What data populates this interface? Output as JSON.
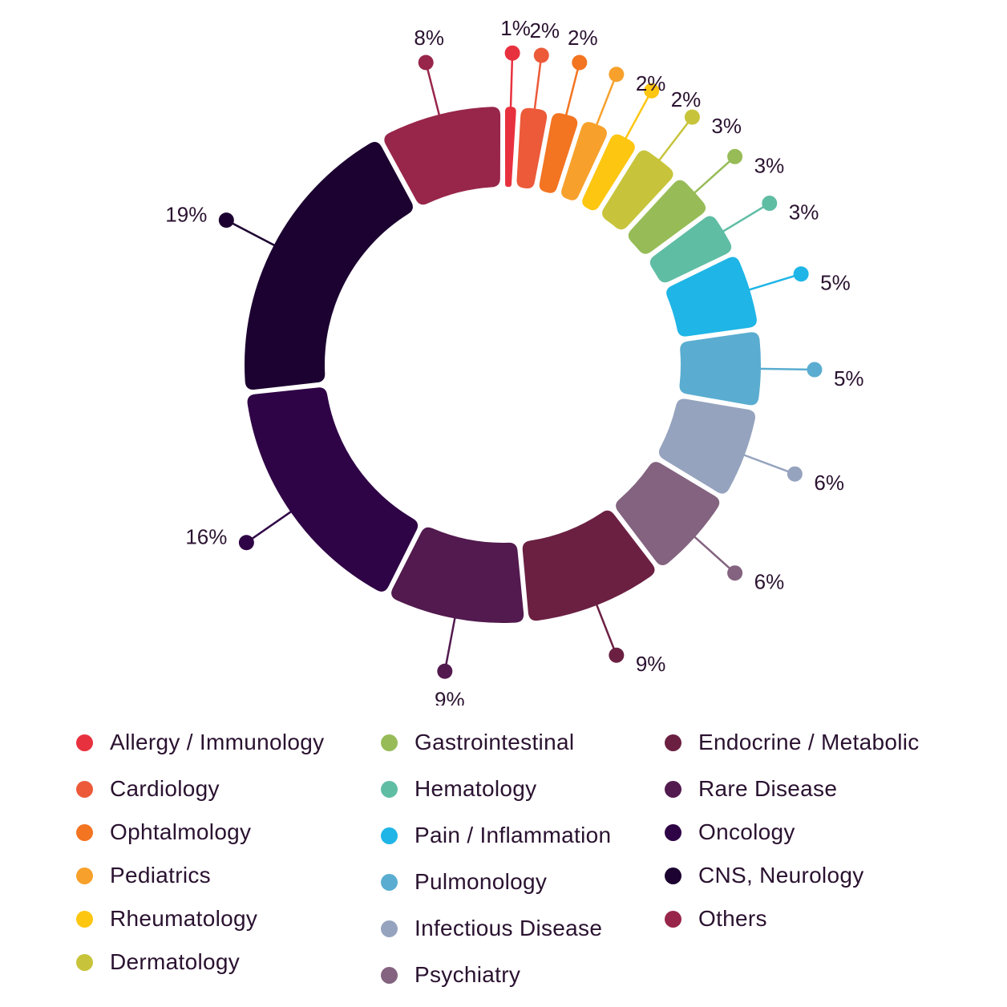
{
  "chart_data": {
    "type": "pie",
    "variant": "donut",
    "title": "",
    "legend_position": "bottom",
    "slices": [
      {
        "label": "Allergy / Immunology",
        "value": 1,
        "value_label": "1%",
        "color": "#e8313f"
      },
      {
        "label": "Cardiology",
        "value": 2,
        "value_label": "2%",
        "color": "#ec5a3a"
      },
      {
        "label": "Ophtalmology",
        "value": 2,
        "value_label": "2%",
        "color": "#f37421"
      },
      {
        "label": "Pediatrics",
        "value": 2,
        "value_label": "2%",
        "color": "#f7a12c"
      },
      {
        "label": "Rheumatology",
        "value": 2,
        "value_label": "2%",
        "color": "#fdc611"
      },
      {
        "label": "Dermatology",
        "value": 3,
        "value_label": "3%",
        "color": "#c7c43b"
      },
      {
        "label": "Gastrointestinal",
        "value": 3,
        "value_label": "3%",
        "color": "#97bc57"
      },
      {
        "label": "Hematology",
        "value": 3,
        "value_label": "3%",
        "color": "#5fbda4"
      },
      {
        "label": "Pain / Inflammation",
        "value": 5,
        "value_label": "5%",
        "color": "#1fb5e6"
      },
      {
        "label": "Pulmonology",
        "value": 5,
        "value_label": "5%",
        "color": "#5aadd0"
      },
      {
        "label": "Infectious Disease",
        "value": 6,
        "value_label": "6%",
        "color": "#95a3be"
      },
      {
        "label": "Psychiatry",
        "value": 6,
        "value_label": "6%",
        "color": "#83637f"
      },
      {
        "label": "Endocrine / Metabolic",
        "value": 9,
        "value_label": "9%",
        "color": "#6b2042"
      },
      {
        "label": "Rare Disease",
        "value": 9,
        "value_label": "9%",
        "color": "#521a4e"
      },
      {
        "label": "Oncology",
        "value": 16,
        "value_label": "16%",
        "color": "#2f0446"
      },
      {
        "label": "CNS, Neurology",
        "value": 19,
        "value_label": "19%",
        "color": "#1c0230"
      },
      {
        "label": "Others",
        "value": 8,
        "value_label": "8%",
        "color": "#98264a"
      }
    ]
  }
}
